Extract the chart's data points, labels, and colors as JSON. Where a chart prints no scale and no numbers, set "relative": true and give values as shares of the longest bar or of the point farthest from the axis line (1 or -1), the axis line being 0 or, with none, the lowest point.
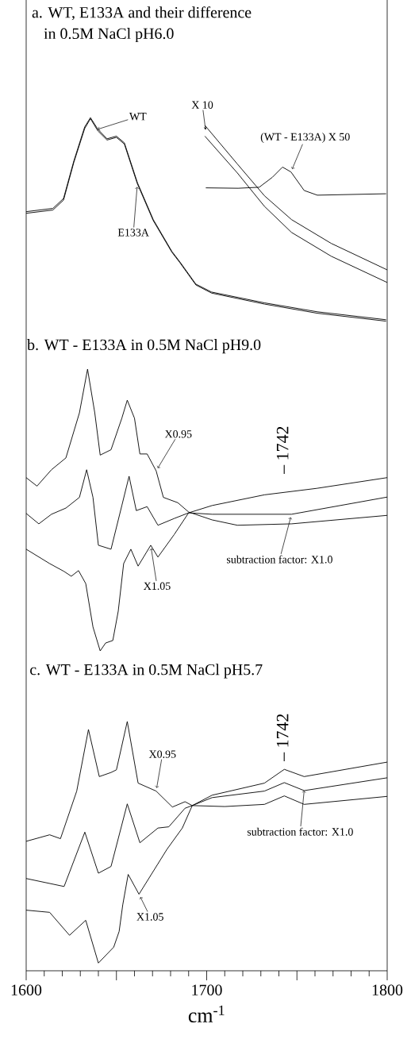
{
  "chart_data": [
    {
      "type": "line",
      "relative": true,
      "title": "a. WT, E133A and their difference",
      "subtitle": "in 0.5M NaCl  pH6.0",
      "xlim": [
        1600,
        1800
      ],
      "tick_labels": false,
      "series": [
        {
          "name": "WT",
          "color": "#000000",
          "x": [
            1600,
            1614.8,
            1620.7,
            1626.4,
            1632.4,
            1635.6,
            1639.7,
            1644.8,
            1650,
            1654.4,
            1661.6,
            1670.4,
            1680.7,
            1685.1,
            1694,
            1702.7,
            1732,
            1761.3,
            1799.4
          ],
          "values": [
            0.538,
            0.554,
            0.603,
            0.787,
            0.954,
            1.0,
            0.943,
            0.896,
            0.909,
            0.876,
            0.681,
            0.499,
            0.343,
            0.292,
            0.182,
            0.143,
            0.09,
            0.046,
            0.007
          ]
        },
        {
          "name": "E133A",
          "color": "#000000",
          "x": [
            1600,
            1614.8,
            1620.7,
            1626.4,
            1632.4,
            1635.6,
            1639.7,
            1644.8,
            1650,
            1654.4,
            1661.6,
            1670.4,
            1680.7,
            1685.1,
            1694,
            1702.7,
            1732,
            1761.3,
            1799.4
          ],
          "values": [
            0.53,
            0.546,
            0.595,
            0.78,
            0.946,
            0.995,
            0.935,
            0.89,
            0.903,
            0.87,
            0.675,
            0.494,
            0.339,
            0.288,
            0.178,
            0.138,
            0.084,
            0.039,
            0.0
          ]
        },
        {
          "color": "#000000",
          "x": [
            1699,
            1717,
            1732,
            1747,
            1769,
            1800
          ],
          "values": [
            0.962,
            0.772,
            0.616,
            0.499,
            0.382,
            0.252
          ]
        },
        {
          "color": "#000000",
          "x": [
            1699,
            1717,
            1732,
            1747,
            1769,
            1800
          ],
          "values": [
            0.909,
            0.728,
            0.564,
            0.436,
            0.319,
            0.19
          ]
        },
        {
          "name": "(WT - E133A) X 50",
          "color": "#000000",
          "x": [
            1699.5,
            1717.4,
            1729.1,
            1736.4,
            1742,
            1746.7,
            1754,
            1761.3,
            1799.4
          ],
          "values": [
            0.655,
            0.653,
            0.658,
            0.707,
            0.757,
            0.733,
            0.642,
            0.619,
            0.626
          ]
        }
      ],
      "annotations": [
        "X 10"
      ]
    },
    {
      "type": "line",
      "relative": true,
      "title": "b. WT - E133A in 0.5M NaCl pH9.0",
      "xlim": [
        1600,
        1800
      ],
      "tick_labels": false,
      "series": [
        {
          "name": "X0.95",
          "color": "#000000",
          "x": [
            1600,
            1606,
            1614,
            1622,
            1629.5,
            1634,
            1638,
            1641,
            1647,
            1653,
            1656,
            1660,
            1663,
            1667,
            1672,
            1676,
            1684,
            1690,
            1703,
            1717,
            1747,
            1800
          ],
          "values": [
            0.615,
            0.585,
            0.643,
            0.685,
            0.845,
            1.0,
            0.845,
            0.695,
            0.714,
            0.826,
            0.89,
            0.826,
            0.699,
            0.699,
            0.639,
            0.545,
            0.526,
            0.493,
            0.465,
            0.446,
            0.451,
            0.481
          ]
        },
        {
          "name": "subtraction factor: X1.0",
          "color": "#000000",
          "x": [
            1600,
            1607,
            1614,
            1622,
            1629.5,
            1633.5,
            1637,
            1640,
            1647,
            1653,
            1657,
            1661,
            1667,
            1673,
            1682,
            1690,
            1703,
            1747,
            1800
          ],
          "values": [
            0.488,
            0.451,
            0.485,
            0.507,
            0.545,
            0.643,
            0.545,
            0.375,
            0.361,
            0.516,
            0.62,
            0.498,
            0.512,
            0.446,
            0.47,
            0.49,
            0.485,
            0.485,
            0.546
          ]
        },
        {
          "name": "X1.05",
          "color": "#000000",
          "x": [
            1600,
            1613,
            1621,
            1625,
            1629,
            1633,
            1637,
            1641,
            1644,
            1648,
            1651,
            1654,
            1658,
            1662,
            1669,
            1673,
            1682,
            1690,
            1703,
            1732,
            1761,
            1800
          ],
          "values": [
            0.361,
            0.31,
            0.282,
            0.265,
            0.285,
            0.239,
            0.085,
            0.0,
            0.028,
            0.037,
            0.141,
            0.31,
            0.361,
            0.301,
            0.375,
            0.333,
            0.413,
            0.49,
            0.516,
            0.554,
            0.577,
            0.615
          ]
        }
      ],
      "annotations": [
        "– 1742"
      ]
    },
    {
      "type": "line",
      "relative": true,
      "title": "c. WT - E133A in 0.5M NaCl pH5.7",
      "xlim": [
        1600,
        1800
      ],
      "xticks": [
        1600,
        {
          "value": 1650,
          "label": null
        },
        1700,
        {
          "value": 1750,
          "label": null
        },
        1800
      ],
      "tick_labels": "x",
      "xlabel": "cm$^{-1}$",
      "series": [
        {
          "name": "X0.95",
          "color": "#000000",
          "x": [
            1600,
            1613,
            1619,
            1628,
            1634.5,
            1640.5,
            1647,
            1650,
            1656,
            1662,
            1672,
            1681,
            1688,
            1692,
            1703,
            1732,
            1743,
            1754,
            1800
          ],
          "values": [
            0.504,
            0.531,
            0.515,
            0.712,
            0.967,
            0.772,
            0.789,
            0.8,
            1.0,
            0.745,
            0.712,
            0.646,
            0.668,
            0.652,
            0.695,
            0.745,
            0.802,
            0.772,
            0.832
          ]
        },
        {
          "name": "subtraction factor: X1.0",
          "color": "#000000",
          "x": [
            1600,
            1621,
            1632.5,
            1640,
            1647,
            1656,
            1663,
            1673,
            1679,
            1688,
            1692,
            1703,
            1732,
            1743,
            1754,
            1800
          ],
          "values": [
            0.35,
            0.317,
            0.542,
            0.372,
            0.4,
            0.659,
            0.498,
            0.559,
            0.564,
            0.641,
            0.652,
            0.685,
            0.712,
            0.747,
            0.714,
            0.767
          ]
        },
        {
          "name": "X1.05",
          "color": "#000000",
          "x": [
            1600,
            1613,
            1624,
            1633,
            1640,
            1648.5,
            1651.5,
            1653.5,
            1656.5,
            1662.5,
            1678,
            1686.5,
            1692,
            1710,
            1732,
            1743,
            1754,
            1800
          ],
          "values": [
            0.219,
            0.21,
            0.115,
            0.177,
            0.0,
            0.066,
            0.131,
            0.241,
            0.367,
            0.285,
            0.471,
            0.559,
            0.652,
            0.648,
            0.657,
            0.692,
            0.657,
            0.69
          ]
        }
      ],
      "annotations": [
        "– 1742"
      ]
    }
  ]
}
